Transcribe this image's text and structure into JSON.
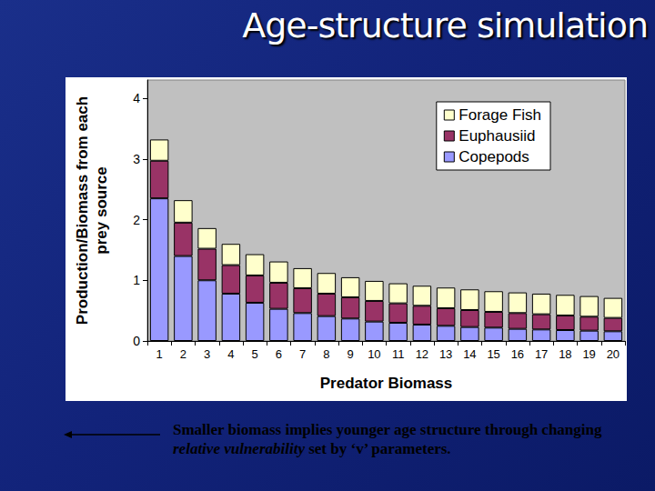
{
  "chart_data": {
    "type": "bar",
    "title": "Age-structure simulation",
    "x_label": "Predator Biomass",
    "y_label": "Production/Biomass from each\nprey source",
    "caption": [
      "Smaller biomass implies younger age structure through changing ",
      "relative vulnerability",
      " set by ‘v’ parameters."
    ],
    "categories": [
      "1",
      "2",
      "3",
      "4",
      "5",
      "6",
      "7",
      "8",
      "9",
      "10",
      "11",
      "12",
      "13",
      "14",
      "15",
      "16",
      "17",
      "18",
      "19",
      "20"
    ],
    "series": [
      {
        "name": "Copepods",
        "color": "#9999FF",
        "values": [
          2.35,
          1.4,
          1.0,
          0.78,
          0.63,
          0.53,
          0.46,
          0.41,
          0.37,
          0.32,
          0.3,
          0.27,
          0.25,
          0.23,
          0.22,
          0.2,
          0.19,
          0.18,
          0.17,
          0.16
        ]
      },
      {
        "name": "Euphausiid",
        "color": "#993366",
        "values": [
          0.62,
          0.55,
          0.52,
          0.47,
          0.45,
          0.43,
          0.41,
          0.37,
          0.35,
          0.34,
          0.32,
          0.31,
          0.29,
          0.28,
          0.26,
          0.26,
          0.25,
          0.24,
          0.23,
          0.22
        ]
      },
      {
        "name": "Forage Fish",
        "color": "#FFFFCC",
        "values": [
          0.35,
          0.37,
          0.34,
          0.35,
          0.35,
          0.35,
          0.33,
          0.34,
          0.33,
          0.33,
          0.33,
          0.33,
          0.34,
          0.34,
          0.34,
          0.34,
          0.34,
          0.34,
          0.34,
          0.33
        ]
      }
    ],
    "stacked": true,
    "ylim": [
      0,
      4.3
    ],
    "yticks": [
      0,
      1,
      2,
      3,
      4
    ],
    "grid": false,
    "legend": "top-right"
  }
}
